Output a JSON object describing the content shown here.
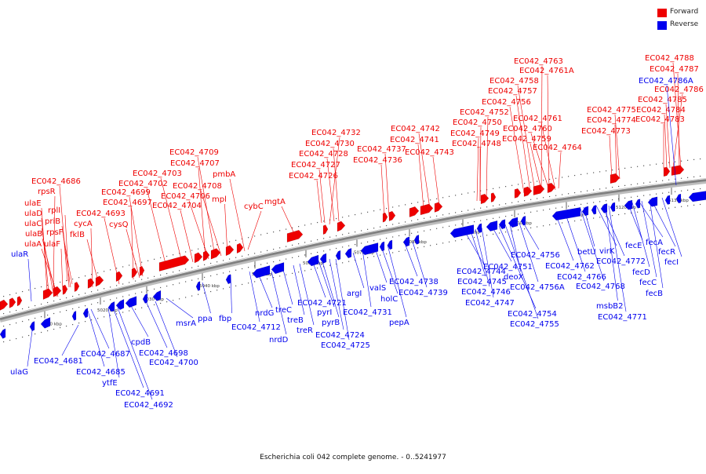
{
  "title": "Escherichia coli 042 complete genome. - 0..5241977",
  "legend": [
    {
      "label": "Forward",
      "color": "#ee0000"
    },
    {
      "label": "Reverse",
      "color": "#0000ee"
    }
  ],
  "colors": {
    "forward": "#ee0000",
    "reverse": "#0000ee",
    "backbone": "#777777"
  },
  "ticks": [
    "5010 kbp",
    "5020 kbp",
    "5030 kbp",
    "5040 kbp",
    "5050 kbp",
    "5060 kbp",
    "5070 kbp",
    "5080 kbp",
    "5090 kbp",
    "5100 kbp",
    "5110 kbp",
    "5120 kbp",
    "5130 kbp"
  ],
  "forward_genes": [
    "EC042_4686",
    "rpsR",
    "ulaE",
    "ulaD",
    "ulaC",
    "ulaB",
    "ulaA",
    "rplI",
    "priB",
    "rpsF",
    "ulaF",
    "cycA",
    "fklB",
    "EC042_4693",
    "EC042_4697",
    "EC042_4699",
    "cysQ",
    "EC042_4702",
    "EC042_4703",
    "EC042_4707",
    "EC042_4709",
    "EC042_4706",
    "EC042_4704",
    "EC042_4708",
    "mpl",
    "pmbA",
    "cybC",
    "mgtA",
    "EC042_4732",
    "EC042_4730",
    "EC042_4728",
    "EC042_4727",
    "EC042_4726",
    "EC042_4737",
    "EC042_4736",
    "EC042_4742",
    "EC042_4741",
    "EC042_4743",
    "EC042_4763",
    "EC042_4761A",
    "EC042_4758",
    "EC042_4757",
    "EC042_4756",
    "EC042_4752",
    "EC042_4750",
    "EC042_4749",
    "EC042_4748",
    "EC042_4761",
    "EC042_4760",
    "EC042_4759",
    "EC042_4764",
    "EC042_4775",
    "EC042_4774",
    "EC042_4773",
    "EC042_4788",
    "EC042_4787",
    "EC042_4786",
    "EC042_4785",
    "EC042_4784",
    "EC042_4783"
  ],
  "reverse_genes": [
    "EC042_4786A",
    "ulaR",
    "ulaG",
    "EC042_4681",
    "EC042_4687",
    "EC042_4685",
    "ytfE",
    "EC042_4691",
    "EC042_4692",
    "cpdB",
    "EC042_4698",
    "EC042_4700",
    "msrA",
    "ppa",
    "fbp",
    "nrdG",
    "EC042_4712",
    "nrdD",
    "treC",
    "treB",
    "treR",
    "EC042_4721",
    "pyrI",
    "pyrB",
    "EC042_4724",
    "EC042_4725",
    "argI",
    "EC042_4731",
    "valS",
    "holC",
    "pepA",
    "EC042_4738",
    "EC042_4739",
    "EC042_4744",
    "EC042_4745",
    "EC042_4746",
    "EC042_4747",
    "EC042_4754",
    "EC042_4755",
    "EC042_4751",
    "deoX",
    "EC042_4756A",
    "EC042_4756",
    "EC042_4762",
    "EC042_4766",
    "EC042_4768",
    "betU",
    "virK",
    "EC042_4772",
    "msbB2",
    "EC042_4771",
    "fecE",
    "fecA",
    "fecR",
    "fecI",
    "fecD",
    "fecC",
    "fecB"
  ]
}
